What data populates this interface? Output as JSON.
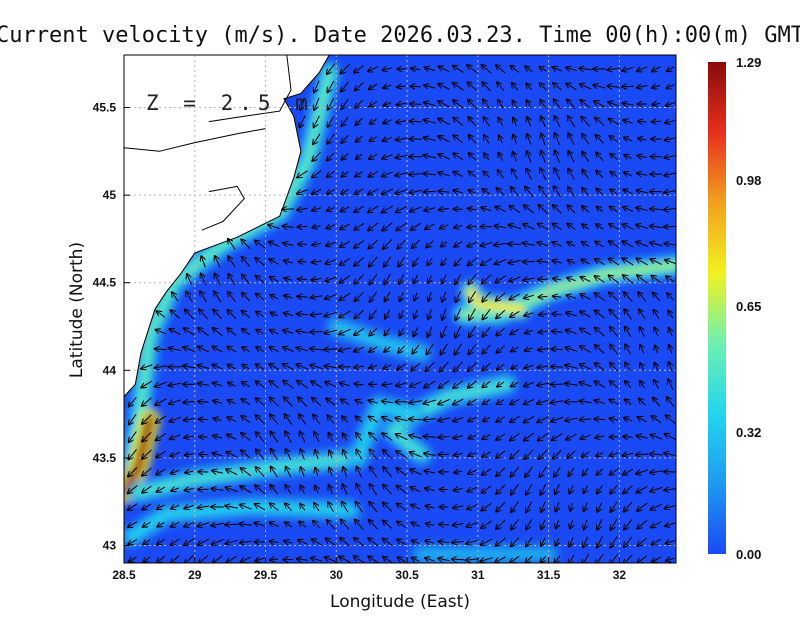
{
  "chart_data": {
    "type": "heatmap",
    "title": "Current velocity (m/s). Date 2026.03.23. Time 00(h):00(m) GMT",
    "xlabel": "Longitude (East)",
    "ylabel": "Latitude (North)",
    "depth_label": "Z = 2.5 m",
    "xlim": [
      28.5,
      32.4
    ],
    "ylim": [
      42.9,
      45.8
    ],
    "x_ticks": [
      {
        "value": 28.5,
        "label": "28.5"
      },
      {
        "value": 29,
        "label": "29"
      },
      {
        "value": 29.5,
        "label": "29.5"
      },
      {
        "value": 30,
        "label": "30"
      },
      {
        "value": 30.5,
        "label": "30.5"
      },
      {
        "value": 31,
        "label": "31"
      },
      {
        "value": 31.5,
        "label": "31.5"
      },
      {
        "value": 32,
        "label": "32"
      }
    ],
    "y_ticks": [
      {
        "value": 43,
        "label": "43"
      },
      {
        "value": 43.5,
        "label": "43.5"
      },
      {
        "value": 44,
        "label": "44"
      },
      {
        "value": 44.5,
        "label": "44.5"
      },
      {
        "value": 45,
        "label": "45"
      },
      {
        "value": 45.5,
        "label": "45.5"
      }
    ],
    "colorbar": {
      "min": 0.0,
      "max": 1.29,
      "ticks": [
        {
          "value": 0.0,
          "label": "0.00"
        },
        {
          "value": 0.32,
          "label": "0.32"
        },
        {
          "value": 0.65,
          "label": "0.65"
        },
        {
          "value": 0.98,
          "label": "0.98"
        },
        {
          "value": 1.29,
          "label": "1.29"
        }
      ],
      "colors": [
        "#1a4af5",
        "#1e9af0",
        "#22d6ee",
        "#6ef0b0",
        "#f2f21e",
        "#f2a01e",
        "#e8301e",
        "#8a0a0a"
      ]
    },
    "grid": true,
    "grid_style": "dotted",
    "coastline": [
      [
        28.5,
        43.85
      ],
      [
        28.58,
        43.92
      ],
      [
        28.62,
        44.1
      ],
      [
        28.66,
        44.2
      ],
      [
        28.72,
        44.35
      ],
      [
        28.8,
        44.45
      ],
      [
        28.9,
        44.55
      ],
      [
        29.0,
        44.67
      ],
      [
        29.3,
        44.76
      ],
      [
        29.6,
        44.88
      ],
      [
        29.7,
        45.1
      ],
      [
        29.75,
        45.25
      ],
      [
        29.7,
        45.45
      ],
      [
        29.63,
        45.55
      ],
      [
        29.75,
        45.58
      ],
      [
        29.88,
        45.7
      ],
      [
        29.95,
        45.8
      ]
    ],
    "river_banks": [
      [
        [
          28.5,
          45.27
        ],
        [
          28.75,
          45.25
        ],
        [
          29.0,
          45.3
        ],
        [
          29.3,
          45.35
        ],
        [
          29.5,
          45.38
        ]
      ],
      [
        [
          29.05,
          44.8
        ],
        [
          29.2,
          44.85
        ],
        [
          29.35,
          44.98
        ],
        [
          29.3,
          45.05
        ],
        [
          29.1,
          45.02
        ]
      ],
      [
        [
          29.1,
          45.42
        ],
        [
          29.35,
          45.45
        ],
        [
          29.6,
          45.48
        ],
        [
          29.68,
          45.6
        ],
        [
          29.65,
          45.8
        ]
      ]
    ],
    "jets": [
      {
        "points": [
          [
            29.95,
            45.7
          ],
          [
            29.8,
            45.2
          ],
          [
            29.6,
            44.9
          ],
          [
            29.2,
            44.72
          ],
          [
            28.85,
            44.5
          ],
          [
            28.68,
            44.2
          ],
          [
            28.62,
            43.8
          ],
          [
            28.55,
            43.45
          ]
        ],
        "speed": 0.5
      },
      {
        "points": [
          [
            28.68,
            43.72
          ],
          [
            28.6,
            43.45
          ],
          [
            28.5,
            43.3
          ]
        ],
        "speed": 1.25
      },
      {
        "points": [
          [
            30.15,
            43.5
          ],
          [
            29.6,
            43.45
          ],
          [
            29.0,
            43.38
          ],
          [
            28.6,
            43.3
          ]
        ],
        "speed": 0.45
      },
      {
        "points": [
          [
            30.1,
            43.2
          ],
          [
            29.4,
            43.22
          ],
          [
            28.8,
            43.18
          ],
          [
            28.55,
            43.05
          ]
        ],
        "speed": 0.35
      },
      {
        "points": [
          [
            32.4,
            44.6
          ],
          [
            31.9,
            44.55
          ],
          [
            31.5,
            44.45
          ],
          [
            31.15,
            44.32
          ],
          [
            30.9,
            44.32
          ]
        ],
        "speed": 0.6
      },
      {
        "points": [
          [
            31.3,
            44.35
          ],
          [
            31.0,
            44.38
          ],
          [
            30.95,
            44.45
          ]
        ],
        "speed": 0.75
      },
      {
        "points": [
          [
            31.2,
            43.92
          ],
          [
            30.8,
            43.85
          ],
          [
            30.55,
            43.75
          ],
          [
            30.4,
            43.65
          ],
          [
            30.6,
            43.52
          ]
        ],
        "speed": 0.45
      },
      {
        "points": [
          [
            30.55,
            43.75
          ],
          [
            30.3,
            43.8
          ],
          [
            30.15,
            43.5
          ]
        ],
        "speed": 0.35
      },
      {
        "points": [
          [
            31.5,
            42.95
          ],
          [
            31.0,
            42.95
          ],
          [
            30.6,
            42.95
          ]
        ],
        "speed": 0.25
      },
      {
        "points": [
          [
            30.0,
            44.25
          ],
          [
            30.35,
            44.15
          ],
          [
            30.6,
            44.1
          ]
        ],
        "speed": 0.3
      }
    ]
  }
}
